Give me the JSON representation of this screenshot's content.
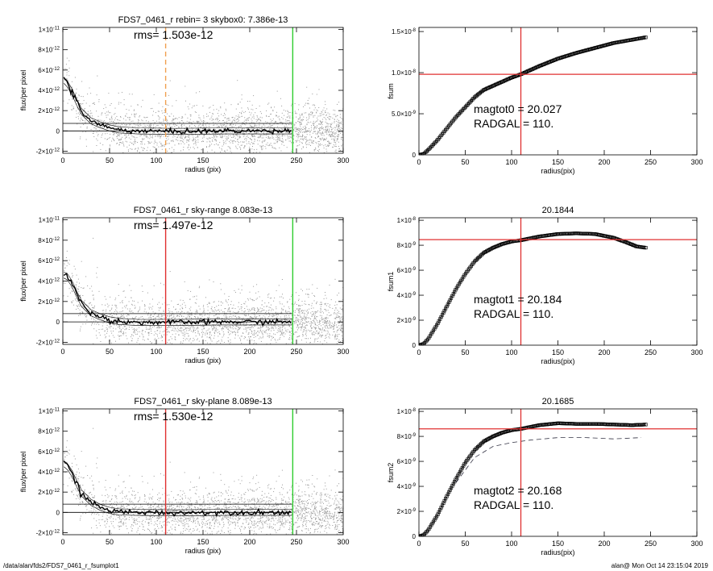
{
  "footer": {
    "path": "/data/alan/fds2/FDS7_0461_r_fsumplot1",
    "stamp": "alan@  Mon Oct 14 23:15:04 2019"
  },
  "colors": {
    "background": "#ffffff",
    "scatter": "#9a9a9a",
    "profile": "#000000",
    "red_line": "#e03030",
    "green_line": "#2ecc2e",
    "orange_dash": "#f0a050"
  },
  "chart_data": [
    {
      "type": "scatter",
      "title": "FDS7_0461_r rebin= 3    skybox0:  7.386e-13",
      "rms_label": "rms= 1.503e-12",
      "xlabel": "radius (pix)",
      "ylabel": "flux/per pixel",
      "xlim": [
        0,
        300
      ],
      "ylim": [
        -2.2e-12,
        1.02e-11
      ],
      "xticks": [
        "0",
        "50",
        "100",
        "150",
        "200",
        "250",
        "300"
      ],
      "yticks": [
        {
          "v": 1e-11,
          "label": "1×10-11"
        },
        {
          "v": 8e-12,
          "label": "8×10-12"
        },
        {
          "v": 6e-12,
          "label": "6×10-12"
        },
        {
          "v": 4e-12,
          "label": "4×10-12"
        },
        {
          "v": 2e-12,
          "label": "2×10-12"
        },
        {
          "v": 0,
          "label": "0"
        },
        {
          "v": -2e-12,
          "label": "-2×10-12"
        }
      ],
      "hlines": [
        0,
        7.4e-13
      ],
      "hline_xmax": 245,
      "vlines": [
        {
          "x": 110,
          "color": "#f0a050",
          "dashed": true
        },
        {
          "x": 246,
          "color": "#2ecc2e",
          "dashed": false
        }
      ],
      "profile": [
        [
          1,
          5e-12
        ],
        [
          5,
          4.6e-12
        ],
        [
          10,
          3.8e-12
        ],
        [
          15,
          2.8e-12
        ],
        [
          20,
          1.9e-12
        ],
        [
          30,
          1e-12
        ],
        [
          40,
          6e-13
        ],
        [
          50,
          3e-13
        ],
        [
          60,
          1e-13
        ],
        [
          80,
          0
        ],
        [
          120,
          -5e-14
        ],
        [
          170,
          0
        ],
        [
          210,
          0
        ],
        [
          245,
          0
        ]
      ],
      "band": 3e-13
    },
    {
      "type": "line",
      "title": "",
      "xlabel": "radius(pix)",
      "ylabel": "fsum",
      "xlim": [
        0,
        300
      ],
      "ylim": [
        0,
        1.55e-08
      ],
      "xticks": [
        "0",
        "50",
        "100",
        "150",
        "200",
        "250",
        "300"
      ],
      "yticks": [
        {
          "v": 1.5e-08,
          "label": "1.5×10-8"
        },
        {
          "v": 1e-08,
          "label": "1.0×10-8"
        },
        {
          "v": 5e-09,
          "label": "5.0×10-9"
        },
        {
          "v": 0,
          "label": "0"
        }
      ],
      "hline": 9.8e-09,
      "vline": 110,
      "annotations": [
        "magtot0 =  20.027",
        "RADGAL =    110."
      ],
      "curve": [
        [
          0,
          0
        ],
        [
          5,
          1e-10
        ],
        [
          10,
          6e-10
        ],
        [
          20,
          1.8e-09
        ],
        [
          30,
          3.2e-09
        ],
        [
          40,
          4.6e-09
        ],
        [
          50,
          5.8e-09
        ],
        [
          60,
          7e-09
        ],
        [
          70,
          7.9e-09
        ],
        [
          80,
          8.4e-09
        ],
        [
          90,
          8.9e-09
        ],
        [
          100,
          9.4e-09
        ],
        [
          110,
          9.8e-09
        ],
        [
          130,
          1.08e-08
        ],
        [
          150,
          1.17e-08
        ],
        [
          170,
          1.24e-08
        ],
        [
          190,
          1.3e-08
        ],
        [
          210,
          1.36e-08
        ],
        [
          230,
          1.4e-08
        ],
        [
          245,
          1.43e-08
        ]
      ],
      "band": 1.2e-10,
      "dashed_curve": []
    },
    {
      "type": "scatter",
      "title": "FDS7_0461_r sky-range  8.083e-13",
      "rms_label": "rms= 1.497e-12",
      "xlabel": "radius (pix)",
      "ylabel": "flux/per pixel",
      "xlim": [
        0,
        300
      ],
      "ylim": [
        -2.2e-12,
        1.02e-11
      ],
      "xticks": [
        "0",
        "50",
        "100",
        "150",
        "200",
        "250",
        "300"
      ],
      "yticks": [
        {
          "v": 1e-11,
          "label": "1×10-11"
        },
        {
          "v": 8e-12,
          "label": "8×10-12"
        },
        {
          "v": 6e-12,
          "label": "6×10-12"
        },
        {
          "v": 4e-12,
          "label": "4×10-12"
        },
        {
          "v": 2e-12,
          "label": "2×10-12"
        },
        {
          "v": 0,
          "label": "0"
        },
        {
          "v": -2e-12,
          "label": "-2×10-12"
        }
      ],
      "hlines": [
        0,
        8.1e-13
      ],
      "hline_xmax": 245,
      "vlines": [
        {
          "x": 110,
          "color": "#e03030",
          "dashed": false
        },
        {
          "x": 246,
          "color": "#2ecc2e",
          "dashed": false
        }
      ],
      "profile": [
        [
          1,
          4.6e-12
        ],
        [
          5,
          4.4e-12
        ],
        [
          10,
          3.7e-12
        ],
        [
          15,
          2.7e-12
        ],
        [
          20,
          1.8e-12
        ],
        [
          30,
          9e-13
        ],
        [
          40,
          5e-13
        ],
        [
          50,
          2e-13
        ],
        [
          60,
          5e-14
        ],
        [
          80,
          -5e-14
        ],
        [
          120,
          -5e-14
        ],
        [
          170,
          0
        ],
        [
          210,
          0
        ],
        [
          245,
          0
        ]
      ],
      "band": 3e-13
    },
    {
      "type": "line",
      "title": "20.1844",
      "xlabel": "radius(pix)",
      "ylabel": "fsum1",
      "xlim": [
        0,
        300
      ],
      "ylim": [
        0,
        1.02e-08
      ],
      "xticks": [
        "0",
        "50",
        "100",
        "150",
        "200",
        "250",
        "300"
      ],
      "yticks": [
        {
          "v": 1e-08,
          "label": "1×10-8"
        },
        {
          "v": 8e-09,
          "label": "8×10-9"
        },
        {
          "v": 6e-09,
          "label": "6×10-9"
        },
        {
          "v": 4e-09,
          "label": "4×10-9"
        },
        {
          "v": 2e-09,
          "label": "2×10-9"
        },
        {
          "v": 0,
          "label": "0"
        }
      ],
      "hline": 8.45e-09,
      "vline": 110,
      "annotations": [
        "magtot1 =  20.184",
        "RADGAL =    110."
      ],
      "curve": [
        [
          0,
          0
        ],
        [
          5,
          1e-10
        ],
        [
          10,
          5e-10
        ],
        [
          20,
          1.7e-09
        ],
        [
          30,
          3.1e-09
        ],
        [
          40,
          4.5e-09
        ],
        [
          50,
          5.7e-09
        ],
        [
          60,
          6.7e-09
        ],
        [
          70,
          7.4e-09
        ],
        [
          80,
          7.8e-09
        ],
        [
          90,
          8.1e-09
        ],
        [
          100,
          8.3e-09
        ],
        [
          110,
          8.4e-09
        ],
        [
          130,
          8.7e-09
        ],
        [
          150,
          8.9e-09
        ],
        [
          170,
          8.95e-09
        ],
        [
          190,
          8.9e-09
        ],
        [
          210,
          8.6e-09
        ],
        [
          225,
          8.2e-09
        ],
        [
          235,
          7.9e-09
        ],
        [
          245,
          7.8e-09
        ]
      ],
      "band": 8e-11,
      "dashed_curve": []
    },
    {
      "type": "scatter",
      "title": "FDS7_0461_r sky-plane  8.089e-13",
      "rms_label": "rms= 1.530e-12",
      "xlabel": "radius (pix)",
      "ylabel": "flux/per pixel",
      "xlim": [
        0,
        300
      ],
      "ylim": [
        -2.2e-12,
        1.02e-11
      ],
      "xticks": [
        "0",
        "50",
        "100",
        "150",
        "200",
        "250",
        "300"
      ],
      "yticks": [
        {
          "v": 1e-11,
          "label": "1×10-11"
        },
        {
          "v": 8e-12,
          "label": "8×10-12"
        },
        {
          "v": 6e-12,
          "label": "6×10-12"
        },
        {
          "v": 4e-12,
          "label": "4×10-12"
        },
        {
          "v": 2e-12,
          "label": "2×10-12"
        },
        {
          "v": 0,
          "label": "0"
        },
        {
          "v": -2e-12,
          "label": "-2×10-12"
        }
      ],
      "hlines": [
        0,
        8.1e-13
      ],
      "hline_xmax": 245,
      "vlines": [
        {
          "x": 110,
          "color": "#e03030",
          "dashed": false
        },
        {
          "x": 246,
          "color": "#2ecc2e",
          "dashed": false
        }
      ],
      "profile": [
        [
          1,
          4.8e-12
        ],
        [
          5,
          4.5e-12
        ],
        [
          10,
          3.8e-12
        ],
        [
          15,
          2.8e-12
        ],
        [
          20,
          1.9e-12
        ],
        [
          30,
          1e-12
        ],
        [
          40,
          5e-13
        ],
        [
          50,
          2e-13
        ],
        [
          60,
          5e-14
        ],
        [
          80,
          0
        ],
        [
          120,
          -5e-14
        ],
        [
          170,
          0
        ],
        [
          210,
          0
        ],
        [
          245,
          0
        ]
      ],
      "band": 3e-13
    },
    {
      "type": "line",
      "title": "20.1685",
      "xlabel": "radius(pix)",
      "ylabel": "fsum2",
      "xlim": [
        0,
        300
      ],
      "ylim": [
        0,
        1.02e-08
      ],
      "xticks": [
        "0",
        "50",
        "100",
        "150",
        "200",
        "250",
        "300"
      ],
      "yticks": [
        {
          "v": 1e-08,
          "label": "1×10-8"
        },
        {
          "v": 8e-09,
          "label": "8×10-9"
        },
        {
          "v": 6e-09,
          "label": "6×10-9"
        },
        {
          "v": 4e-09,
          "label": "4×10-9"
        },
        {
          "v": 2e-09,
          "label": "2×10-9"
        },
        {
          "v": 0,
          "label": "0"
        }
      ],
      "hline": 8.6e-09,
      "vline": 110,
      "annotations": [
        "magtot2 =  20.168",
        "RADGAL =    110."
      ],
      "curve": [
        [
          0,
          0
        ],
        [
          5,
          1e-10
        ],
        [
          10,
          5e-10
        ],
        [
          20,
          1.7e-09
        ],
        [
          30,
          3.2e-09
        ],
        [
          40,
          4.6e-09
        ],
        [
          50,
          5.9e-09
        ],
        [
          60,
          6.9e-09
        ],
        [
          70,
          7.6e-09
        ],
        [
          80,
          8e-09
        ],
        [
          90,
          8.3e-09
        ],
        [
          100,
          8.5e-09
        ],
        [
          110,
          8.6e-09
        ],
        [
          130,
          8.9e-09
        ],
        [
          150,
          9.05e-09
        ],
        [
          170,
          9e-09
        ],
        [
          190,
          9e-09
        ],
        [
          210,
          8.95e-09
        ],
        [
          230,
          8.9e-09
        ],
        [
          245,
          8.95e-09
        ]
      ],
      "band": 8e-11,
      "dashed_curve": [
        [
          40,
          4.3e-09
        ],
        [
          60,
          6.3e-09
        ],
        [
          80,
          7.2e-09
        ],
        [
          100,
          7.5e-09
        ],
        [
          120,
          7.7e-09
        ],
        [
          150,
          7.9e-09
        ],
        [
          180,
          7.9e-09
        ],
        [
          210,
          7.8e-09
        ],
        [
          240,
          7.9e-09
        ]
      ]
    }
  ]
}
